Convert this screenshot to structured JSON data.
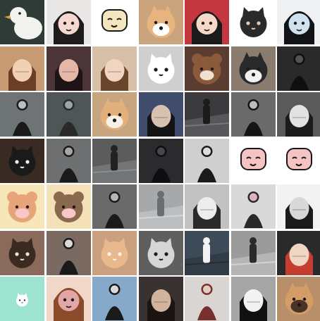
{
  "gallery": {
    "columns": 7,
    "rows": 7,
    "tiles": [
      {
        "name": "duck-photo",
        "bg": "#2f3b36",
        "fg": "#f2f2ee",
        "accent": "#e89a2a",
        "kind": "duck"
      },
      {
        "name": "anime-girl-illustration",
        "bg": "#e9e7e6",
        "fg": "#1d1b1c",
        "accent": "#f3d9cf",
        "kind": "face-dark-hair"
      },
      {
        "name": "cartoon-chef-doodle",
        "bg": "#ffffff",
        "fg": "#1a1a1a",
        "accent": "#f4e6bf",
        "kind": "doodle"
      },
      {
        "name": "shiba-dog-photo",
        "bg": "#c9a47c",
        "fg": "#e8b47e",
        "accent": "#ffffff",
        "kind": "dog"
      },
      {
        "name": "girl-cartoon-red",
        "bg": "#c4373e",
        "fg": "#1a1a1a",
        "accent": "#f6d8c8",
        "kind": "face-dark-hair"
      },
      {
        "name": "cat-cartoon-doodle",
        "bg": "#ffffff",
        "fg": "#2a2a2a",
        "accent": "#e7c7b0",
        "kind": "cat"
      },
      {
        "name": "boy-anime-illustration",
        "bg": "#eef0f2",
        "fg": "#121316",
        "accent": "#cfe0ee",
        "kind": "face-dark-hair"
      },
      {
        "name": "girl-glasses-photo",
        "bg": "#c79a72",
        "fg": "#6a3f24",
        "accent": "#f1d0b5",
        "kind": "person-face"
      },
      {
        "name": "girl-dark-photo",
        "bg": "#4b3538",
        "fg": "#1e1415",
        "accent": "#e6b7a8",
        "kind": "person-face"
      },
      {
        "name": "girl-braids-photo",
        "bg": "#d8c0a8",
        "fg": "#6a452c",
        "accent": "#f2d5c1",
        "kind": "person-face"
      },
      {
        "name": "white-cat-cartoon",
        "bg": "#cfcfcf",
        "fg": "#ffffff",
        "accent": "#1a1a1a",
        "kind": "cat"
      },
      {
        "name": "bear-plush-photo",
        "bg": "#5a3d30",
        "fg": "#8a5a3a",
        "accent": "#f0e2d2",
        "kind": "bear"
      },
      {
        "name": "husky-photo",
        "bg": "#8a7c6e",
        "fg": "#2a2a2a",
        "accent": "#f1f1f1",
        "kind": "dog"
      },
      {
        "name": "black-hoodie-photo",
        "bg": "#2a2a2a",
        "fg": "#0f0f0f",
        "accent": "#5b5b5b",
        "kind": "person-body"
      },
      {
        "name": "street-outfit-photo",
        "bg": "#6e7376",
        "fg": "#1a1a1a",
        "accent": "#d0d0d0",
        "kind": "person-body"
      },
      {
        "name": "sea-mood-photo",
        "bg": "#4e5658",
        "fg": "#2a2a2a",
        "accent": "#a7b1b5",
        "kind": "person-body"
      },
      {
        "name": "corgi-blanket-photo",
        "bg": "#c7a57f",
        "fg": "#e2b07a",
        "accent": "#f7f1e8",
        "kind": "dog"
      },
      {
        "name": "cap-girl-photo",
        "bg": "#3f4c6b",
        "fg": "#141414",
        "accent": "#d7c2b2",
        "kind": "person-face"
      },
      {
        "name": "road-walk-photo",
        "bg": "#3b3b3d",
        "fg": "#1b1b1b",
        "accent": "#8d8d90",
        "kind": "street"
      },
      {
        "name": "dark-dress-photo",
        "bg": "#6a6a6a",
        "fg": "#141414",
        "accent": "#cfcfcf",
        "kind": "person-body"
      },
      {
        "name": "mono-portrait-photo",
        "bg": "#5a5a5a",
        "fg": "#1b1b1b",
        "accent": "#e2e2e2",
        "kind": "person-face"
      },
      {
        "name": "cat-hug-photo",
        "bg": "#3a2b22",
        "fg": "#1a1a1a",
        "accent": "#f1f1f1",
        "kind": "cat"
      },
      {
        "name": "sit-street-photo",
        "bg": "#6d6f71",
        "fg": "#1a1a1a",
        "accent": "#b7b7b7",
        "kind": "person-body"
      },
      {
        "name": "alley-photo",
        "bg": "#5c5c5c",
        "fg": "#222222",
        "accent": "#9aa0a3",
        "kind": "street"
      },
      {
        "name": "hood-dark-photo",
        "bg": "#2b2b2e",
        "fg": "#0e0e10",
        "accent": "#4c4c52",
        "kind": "person-body"
      },
      {
        "name": "sit-floor-photo",
        "bg": "#cfcfcf",
        "fg": "#1a1a1a",
        "accent": "#f2f2f2",
        "kind": "person-body"
      },
      {
        "name": "rabbit-doodle",
        "bg": "#ffffff",
        "fg": "#1a1a1a",
        "accent": "#f4c3c3",
        "kind": "doodle"
      },
      {
        "name": "face-doodle",
        "bg": "#ffffff",
        "fg": "#1a1a1a",
        "accent": "#f4c3c3",
        "kind": "doodle"
      },
      {
        "name": "bear-cartoon-pink",
        "bg": "#f7e7b8",
        "fg": "#e7a47a",
        "accent": "#f9c7c7",
        "kind": "bear"
      },
      {
        "name": "bear-cartoon-hood",
        "bg": "#f5e1b8",
        "fg": "#8a6a4e",
        "accent": "#f9c7c7",
        "kind": "bear"
      },
      {
        "name": "squat-photo",
        "bg": "#6a6a6a",
        "fg": "#1a1a1a",
        "accent": "#c7c7c7",
        "kind": "person-body"
      },
      {
        "name": "building-photo",
        "bg": "#a7a8a9",
        "fg": "#6c6e70",
        "accent": "#e3e4e5",
        "kind": "street"
      },
      {
        "name": "profile-gray-photo",
        "bg": "#c2c2c2",
        "fg": "#2a2a2a",
        "accent": "#ededed",
        "kind": "person-face"
      },
      {
        "name": "bed-girl-photo",
        "bg": "#d9d9d9",
        "fg": "#2a2a2a",
        "accent": "#f3c3d2",
        "kind": "person-body"
      },
      {
        "name": "boy-sketch-photo",
        "bg": "#f2f2f2",
        "fg": "#1a1a1a",
        "accent": "#d8d8d8",
        "kind": "person-face"
      },
      {
        "name": "raccoon-cat-photo",
        "bg": "#8a6a5a",
        "fg": "#3a2a22",
        "accent": "#f0e2d2",
        "kind": "cat"
      },
      {
        "name": "fence-girl-photo",
        "bg": "#7a6a62",
        "fg": "#1a1a1a",
        "accent": "#f1f1f1",
        "kind": "person-body"
      },
      {
        "name": "puff-cat-photo",
        "bg": "#cba07e",
        "fg": "#e8b98d",
        "accent": "#fff4e8",
        "kind": "cat"
      },
      {
        "name": "tabby-cat-bw",
        "bg": "#5f5f5f",
        "fg": "#d6d6d6",
        "accent": "#1c1c1c",
        "kind": "cat"
      },
      {
        "name": "coast-walk-photo",
        "bg": "#3d4b58",
        "fg": "#f2f2f2",
        "accent": "#1c2329",
        "kind": "street"
      },
      {
        "name": "tree-mono-photo",
        "bg": "#9b9b9b",
        "fg": "#2a2a2a",
        "accent": "#e6e6e6",
        "kind": "street"
      },
      {
        "name": "fruit-face-photo",
        "bg": "#2a2a2a",
        "fg": "#c33e2e",
        "accent": "#f1d6c4",
        "kind": "person-face"
      },
      {
        "name": "mint-cat-sticker",
        "bg": "#9ce3d0",
        "fg": "#ffffff",
        "accent": "#2a2a2a",
        "kind": "mini-cat"
      },
      {
        "name": "floral-girl-illustration",
        "bg": "#f1d7c8",
        "fg": "#8a4b2a",
        "accent": "#e3a6a6",
        "kind": "face-dark-hair"
      },
      {
        "name": "sky-girl-photo",
        "bg": "#86a9c9",
        "fg": "#1a1a1a",
        "accent": "#f0f0f0",
        "kind": "person-body"
      },
      {
        "name": "wavy-hair-photo",
        "bg": "#3a3230",
        "fg": "#1a1412",
        "accent": "#d2b49e",
        "kind": "person-face"
      },
      {
        "name": "plaid-boy-photo",
        "bg": "#d9d5d2",
        "fg": "#7a2f2f",
        "accent": "#f0dfd0",
        "kind": "person-body"
      },
      {
        "name": "hand-face-photo",
        "bg": "#a6a6a6",
        "fg": "#111111",
        "accent": "#f2f2f2",
        "kind": "person-face"
      },
      {
        "name": "shiba-mask-photo",
        "bg": "#b78f6b",
        "fg": "#d49c66",
        "accent": "#4a3326",
        "kind": "dog"
      }
    ]
  }
}
